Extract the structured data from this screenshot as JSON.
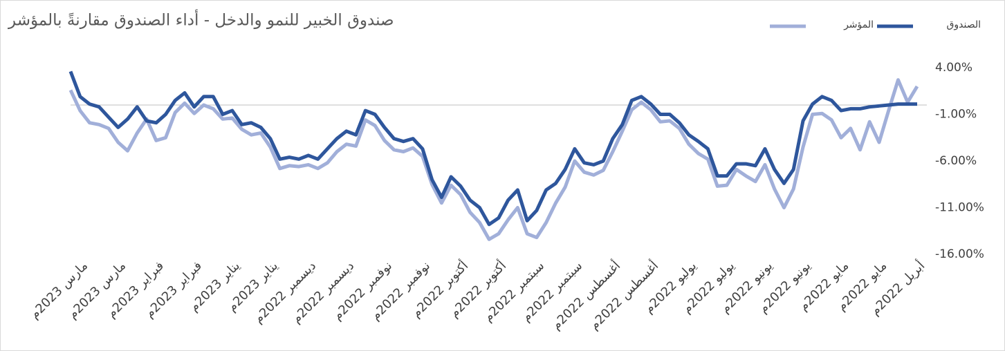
{
  "chart_data": {
    "type": "line",
    "title": "صندوق الخبير للنمو والدخل - أداء الصندوق مقارنةً بالمؤشر",
    "categories": [
      "مارس 2023م",
      null,
      null,
      null,
      "مارس 2023م",
      null,
      null,
      null,
      "فبراير 2023م",
      null,
      null,
      null,
      "فبراير 2023م",
      null,
      null,
      null,
      "يناير 2023م",
      null,
      null,
      null,
      "يناير 2023م",
      null,
      null,
      null,
      "ديسمبر 2022م",
      null,
      null,
      null,
      "ديسمبر 2022م",
      null,
      null,
      null,
      "نوفمبر 2022م",
      null,
      null,
      null,
      "نوفمبر 2022م",
      null,
      null,
      null,
      "أكتوبر 2022م",
      null,
      null,
      null,
      "أكتوبر 2022م",
      null,
      null,
      null,
      "سبتمبر 2022م",
      null,
      null,
      null,
      "سبتمبر 2022م",
      null,
      null,
      null,
      "أغسطس 2022م",
      null,
      null,
      null,
      "أغسطس 2022م",
      null,
      null,
      null,
      "يوليو 2022م",
      null,
      null,
      null,
      "يوليو 2022م",
      null,
      null,
      null,
      "يونيو 2022م",
      null,
      null,
      null,
      "يونيو 2022م",
      null,
      null,
      null,
      "مايو 2022م",
      null,
      null,
      null,
      "مايو 2022م",
      null,
      null,
      null,
      "أبريل 2022م",
      null
    ],
    "series": [
      {
        "name": "الصندوق",
        "color": "#2e569c",
        "values": [
          3.6,
          0.9,
          0.1,
          -0.2,
          -1.3,
          -2.4,
          -1.5,
          -0.2,
          -1.7,
          -1.9,
          -1.0,
          0.5,
          1.3,
          -0.2,
          0.9,
          0.9,
          -1.0,
          -0.6,
          -2.1,
          -1.9,
          -2.4,
          -3.6,
          -5.8,
          -5.6,
          -5.8,
          -5.4,
          -5.8,
          -4.7,
          -3.6,
          -2.8,
          -3.2,
          -0.6,
          -1.0,
          -2.4,
          -3.6,
          -3.9,
          -3.6,
          -4.7,
          -8.0,
          -9.9,
          -7.7,
          -8.7,
          -10.2,
          -11.0,
          -12.8,
          -12.1,
          -10.2,
          -9.1,
          -12.4,
          -11.3,
          -9.1,
          -8.4,
          -6.9,
          -4.7,
          -6.2,
          -6.4,
          -6.0,
          -3.6,
          -2.1,
          0.5,
          0.9,
          0.1,
          -1.0,
          -1.0,
          -1.9,
          -3.2,
          -3.9,
          -4.7,
          -7.6,
          -7.6,
          -6.3,
          -6.3,
          -6.5,
          -4.7,
          -6.9,
          -8.4,
          -6.9,
          -1.7,
          0.1,
          0.9,
          0.5,
          -0.6,
          -0.4,
          -0.4,
          -0.2,
          -0.1,
          0.0,
          0.1,
          0.1,
          0.1
        ]
      },
      {
        "name": "المؤشر",
        "color": "#a1afd9",
        "values": [
          1.6,
          -0.6,
          -1.9,
          -2.1,
          -2.5,
          -4.0,
          -4.9,
          -3.0,
          -1.5,
          -3.8,
          -3.5,
          -0.8,
          0.2,
          -0.9,
          0.0,
          -0.4,
          -1.5,
          -1.4,
          -2.6,
          -3.2,
          -3.0,
          -4.5,
          -6.8,
          -6.5,
          -6.6,
          -6.4,
          -6.8,
          -6.2,
          -5.0,
          -4.2,
          -4.4,
          -1.6,
          -2.2,
          -3.8,
          -4.8,
          -5.0,
          -4.6,
          -5.5,
          -8.5,
          -10.5,
          -8.6,
          -9.6,
          -11.5,
          -12.6,
          -14.4,
          -13.8,
          -12.3,
          -11.0,
          -13.8,
          -14.2,
          -12.6,
          -10.5,
          -8.8,
          -6.0,
          -7.2,
          -7.5,
          -7.0,
          -5.0,
          -2.8,
          -0.5,
          0.3,
          -0.5,
          -1.8,
          -1.7,
          -2.5,
          -4.2,
          -5.2,
          -5.8,
          -8.7,
          -8.6,
          -6.9,
          -7.6,
          -8.2,
          -6.4,
          -9.0,
          -11.0,
          -9.0,
          -4.5,
          -1.0,
          -0.9,
          -1.6,
          -3.5,
          -2.5,
          -4.8,
          -1.8,
          -4.0,
          -0.6,
          2.7,
          0.3,
          2.0
        ]
      }
    ],
    "ylim": [
      -16,
      4
    ],
    "yticks": [
      {
        "value": 4,
        "label": "4.00%"
      },
      {
        "value": -1,
        "label": "-1.00%"
      },
      {
        "value": -6,
        "label": "-6.00%"
      },
      {
        "value": -11,
        "label": "-11.00%"
      },
      {
        "value": -16,
        "label": "-16.00%"
      }
    ],
    "legend": "top-right"
  }
}
